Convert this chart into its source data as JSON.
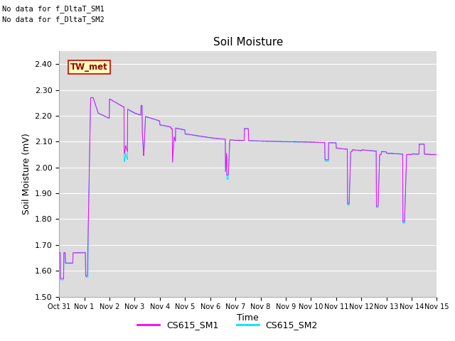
{
  "title": "Soil Moisture",
  "xlabel": "Time",
  "ylabel": "Soil Moisture (mV)",
  "ylim": [
    1.5,
    2.45
  ],
  "yticks": [
    1.5,
    1.6,
    1.7,
    1.8,
    1.9,
    2.0,
    2.1,
    2.2,
    2.3,
    2.4
  ],
  "bg_color": "#dcdcdc",
  "fig_color": "#ffffff",
  "line1_color": "#ff00ff",
  "line2_color": "#00e5ff",
  "legend_labels": [
    "CS615_SM1",
    "CS615_SM2"
  ],
  "no_data_text1": "No data for f_DltaT_SM1",
  "no_data_text2": "No data for f_DltaT_SM2",
  "tw_met_label": "TW_met",
  "x_tick_labels": [
    "Oct 31",
    "Nov 1",
    "Nov 2",
    "Nov 3",
    "Nov 4",
    "Nov 5",
    "Nov 6",
    "Nov 7",
    "Nov 8",
    "Nov 9",
    "Nov 10",
    "Nov 11",
    "Nov 12",
    "Nov 13",
    "Nov 14",
    "Nov 15"
  ],
  "x_tick_positions": [
    0,
    1,
    2,
    3,
    4,
    5,
    6,
    7,
    8,
    9,
    10,
    11,
    12,
    13,
    14,
    15
  ]
}
